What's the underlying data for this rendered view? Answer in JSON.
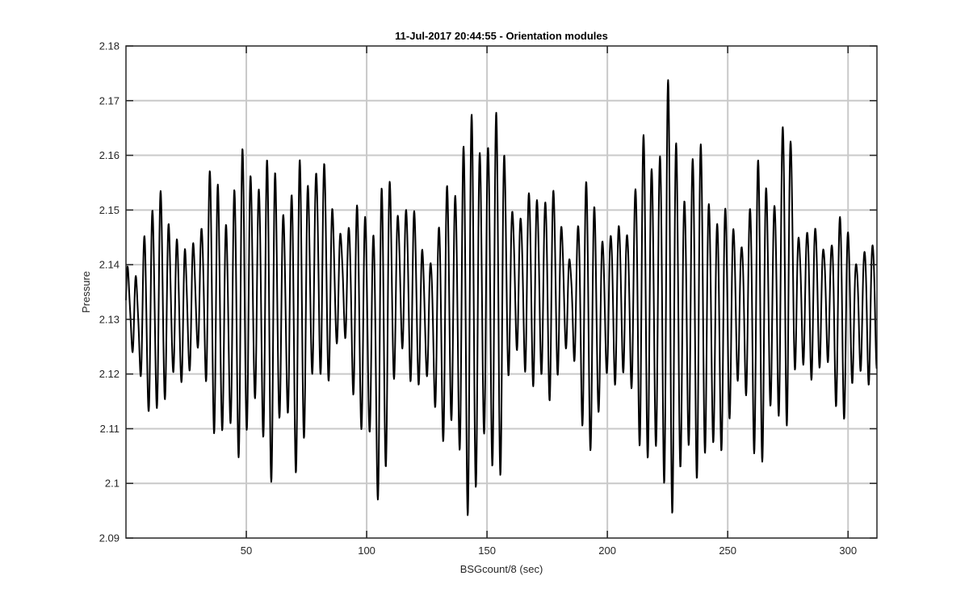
{
  "chart_data": {
    "type": "line",
    "title": "11-Jul-2017 20:44:55 - Orientation modules",
    "xlabel": "BSGcount/8 (sec)",
    "ylabel": "Pressure",
    "xlim": [
      0,
      312
    ],
    "ylim": [
      2.09,
      2.18
    ],
    "xticks": [
      50,
      100,
      150,
      200,
      250,
      300
    ],
    "xtick_labels": [
      "50",
      "100",
      "150",
      "200",
      "250",
      "300"
    ],
    "yticks": [
      2.09,
      2.1,
      2.11,
      2.12,
      2.13,
      2.14,
      2.15,
      2.16,
      2.17,
      2.18
    ],
    "ytick_labels": [
      "2.09",
      "2.1",
      "2.11",
      "2.12",
      "2.13",
      "2.14",
      "2.15",
      "2.16",
      "2.17",
      "2.18"
    ],
    "grid": true,
    "legend": "none",
    "line_color": "#000000",
    "oscillation_period_sec": 3.4,
    "series": [
      {
        "envelope_x": [
          0,
          2,
          5,
          8,
          12,
          16,
          20,
          25,
          30,
          35,
          40,
          45,
          50,
          55,
          60,
          65,
          70,
          75,
          80,
          85,
          90,
          95,
          100,
          105,
          110,
          115,
          120,
          125,
          130,
          135,
          140,
          145,
          150,
          155,
          160,
          165,
          170,
          175,
          180,
          185,
          190,
          195,
          200,
          205,
          210,
          215,
          220,
          225,
          230,
          235,
          240,
          245,
          250,
          255,
          260,
          265,
          270,
          275,
          280,
          285,
          290,
          295,
          300,
          305,
          312
        ],
        "envelope_max": [
          2.14,
          2.138,
          2.14,
          2.155,
          2.15,
          2.158,
          2.15,
          2.142,
          2.15,
          2.159,
          2.155,
          2.16,
          2.162,
          2.164,
          2.16,
          2.158,
          2.159,
          2.16,
          2.167,
          2.152,
          2.15,
          2.15,
          2.156,
          2.155,
          2.158,
          2.155,
          2.15,
          2.145,
          2.148,
          2.162,
          2.169,
          2.168,
          2.175,
          2.168,
          2.158,
          2.15,
          2.158,
          2.16,
          2.15,
          2.145,
          2.155,
          2.16,
          2.145,
          2.15,
          2.155,
          2.165,
          2.17,
          2.176,
          2.165,
          2.165,
          2.163,
          2.158,
          2.15,
          2.15,
          2.155,
          2.166,
          2.158,
          2.173,
          2.15,
          2.148,
          2.148,
          2.15,
          2.15,
          2.145,
          2.145
        ],
        "envelope_min": [
          2.127,
          2.125,
          2.12,
          2.105,
          2.115,
          2.11,
          2.115,
          2.12,
          2.12,
          2.112,
          2.104,
          2.101,
          2.108,
          2.105,
          2.1,
          2.108,
          2.1,
          2.108,
          2.115,
          2.12,
          2.125,
          2.115,
          2.103,
          2.091,
          2.112,
          2.12,
          2.118,
          2.115,
          2.11,
          2.105,
          2.092,
          2.096,
          2.096,
          2.1,
          2.118,
          2.122,
          2.115,
          2.11,
          2.122,
          2.122,
          2.11,
          2.099,
          2.12,
          2.118,
          2.112,
          2.105,
          2.094,
          2.096,
          2.093,
          2.1,
          2.103,
          2.096,
          2.112,
          2.115,
          2.108,
          2.099,
          2.11,
          2.111,
          2.118,
          2.12,
          2.12,
          2.113,
          2.112,
          2.118,
          2.12
        ]
      }
    ]
  }
}
